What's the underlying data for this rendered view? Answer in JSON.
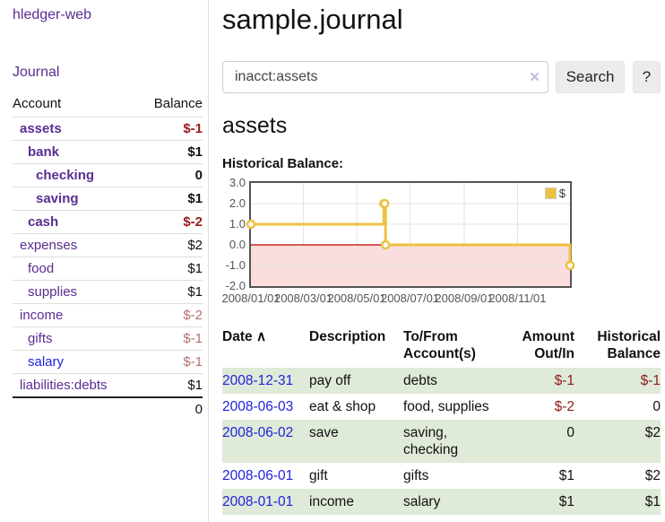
{
  "sidebar": {
    "app_title": "hledger-web",
    "nav": {
      "journal_label": "Journal"
    },
    "accounts_table": {
      "headers": {
        "account": "Account",
        "balance": "Balance"
      },
      "rows": [
        {
          "name": "assets",
          "depth": 1,
          "in_query": true,
          "balance": "$-1",
          "balance_tone": "neg"
        },
        {
          "name": "bank",
          "depth": 2,
          "in_query": true,
          "balance": "$1",
          "balance_tone": "pos"
        },
        {
          "name": "checking",
          "depth": 3,
          "in_query": true,
          "balance": "0",
          "balance_tone": "pos"
        },
        {
          "name": "saving",
          "depth": 3,
          "in_query": true,
          "balance": "$1",
          "balance_tone": "pos"
        },
        {
          "name": "cash",
          "depth": 2,
          "in_query": true,
          "balance": "$-2",
          "balance_tone": "neg"
        },
        {
          "name": "expenses",
          "depth": 1,
          "in_query": false,
          "balance": "$2",
          "balance_tone": "pos"
        },
        {
          "name": "food",
          "depth": 2,
          "in_query": false,
          "balance": "$1",
          "balance_tone": "pos"
        },
        {
          "name": "supplies",
          "depth": 2,
          "in_query": false,
          "balance": "$1",
          "balance_tone": "pos"
        },
        {
          "name": "income",
          "depth": 1,
          "in_query": false,
          "balance": "$-2",
          "balance_tone": "neg-light"
        },
        {
          "name": "gifts",
          "depth": 2,
          "in_query": false,
          "balance": "$-1",
          "balance_tone": "neg-light"
        },
        {
          "name": "salary",
          "depth": 2,
          "in_query": false,
          "balance": "$-1",
          "balance_tone": "neg-light",
          "link_tone": "blue"
        },
        {
          "name": "liabilities:debts",
          "depth": 1,
          "in_query": false,
          "balance": "$1",
          "balance_tone": "pos"
        }
      ],
      "total": "0"
    }
  },
  "header": {
    "title": "sample.journal"
  },
  "search": {
    "query": "inacct:assets",
    "clear_icon": "✕",
    "search_button": "Search",
    "help_button": "?"
  },
  "account_page": {
    "title": "assets",
    "chart_label": "Historical Balance:"
  },
  "chart_data": {
    "type": "line",
    "style": "step",
    "title": "Historical Balance:",
    "series": [
      {
        "name": "$",
        "color": "#edc240",
        "points": [
          [
            "2008-01-01",
            1
          ],
          [
            "2008-06-01",
            2
          ],
          [
            "2008-06-02",
            2
          ],
          [
            "2008-06-03",
            0
          ],
          [
            "2008-12-31",
            -1
          ]
        ]
      }
    ],
    "x_range": [
      "2008-01-01",
      "2008-12-31"
    ],
    "x_ticks": [
      "2008/01/01",
      "2008/03/01",
      "2008/05/01",
      "2008/07/01",
      "2008/09/01",
      "2008/11/01"
    ],
    "y_ticks": [
      3,
      2,
      1,
      0,
      -1,
      -2
    ],
    "ylim": [
      -2,
      3
    ],
    "grid": true,
    "legend": {
      "position": "top-right",
      "label": "$"
    },
    "negative_region_color": "#fadddd",
    "zero_line_color": "#c00000",
    "grid_line_color": "#e3e3e3",
    "border_color": "#545454"
  },
  "transactions": {
    "headers": [
      {
        "label": "Date",
        "sortable": true,
        "sort_icon": "∧"
      },
      {
        "label": "Description"
      },
      {
        "label": "To/From Account(s)"
      },
      {
        "label": "Amount Out/In",
        "align": "right"
      },
      {
        "label": "Historical Balance",
        "align": "right"
      }
    ],
    "rows": [
      {
        "date": "2008-12-31",
        "description": "pay off",
        "accounts": "debts",
        "amount": "$-1",
        "amount_tone": "neg",
        "balance": "$-1",
        "balance_tone": "neg",
        "green": true
      },
      {
        "date": "2008-06-03",
        "description": "eat & shop",
        "accounts": "food, supplies",
        "amount": "$-2",
        "amount_tone": "neg",
        "balance": "0",
        "balance_tone": "pos",
        "green": false
      },
      {
        "date": "2008-06-02",
        "description": "save",
        "accounts": "saving, checking",
        "amount": "0",
        "amount_tone": "pos",
        "balance": "$2",
        "balance_tone": "pos",
        "green": true
      },
      {
        "date": "2008-06-01",
        "description": "gift",
        "accounts": "gifts",
        "amount": "$1",
        "amount_tone": "pos",
        "balance": "$2",
        "balance_tone": "pos",
        "green": false
      },
      {
        "date": "2008-01-01",
        "description": "income",
        "accounts": "salary",
        "amount": "$1",
        "amount_tone": "pos",
        "balance": "$1",
        "balance_tone": "pos",
        "green": true
      }
    ]
  },
  "colors": {
    "link_purple": "#5a2d91",
    "link_blue": "#2222dd",
    "negative_strong": "#971b1b",
    "negative_light": "#b37070",
    "row_green": "#dfead8",
    "chart_line": "#edc240",
    "button_bg": "#ececec"
  }
}
